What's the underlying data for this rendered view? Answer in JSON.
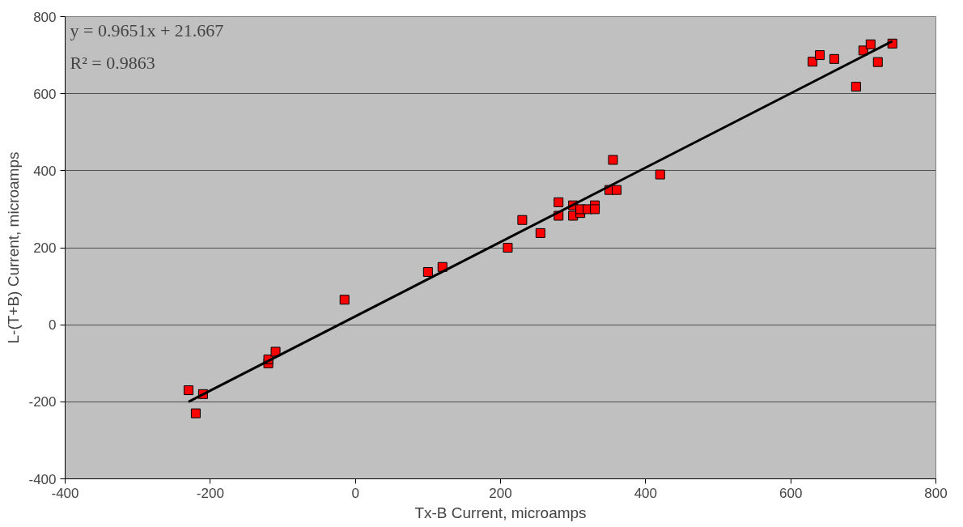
{
  "chart_data": {
    "type": "scatter",
    "xlabel": "Tx-B Current, microamps",
    "ylabel": "L-(T+B) Current, microamps",
    "xlim": [
      -400,
      800
    ],
    "xticks": [
      -400,
      -200,
      0,
      200,
      400,
      600,
      800
    ],
    "ylim": [
      -400,
      800
    ],
    "yticks": [
      -400,
      -200,
      0,
      200,
      400,
      600,
      800
    ],
    "grid": "y",
    "annotations": [
      "y = 0.9651x + 21.667",
      "R² = 0.9863"
    ],
    "series": [
      {
        "color": "#ff0000",
        "marker": "square",
        "x": [
          -230,
          -220,
          -210,
          -120,
          -120,
          -110,
          -15,
          100,
          120,
          210,
          230,
          255,
          280,
          280,
          300,
          300,
          310,
          310,
          320,
          330,
          330,
          350,
          355,
          360,
          420,
          630,
          640,
          660,
          690,
          700,
          710,
          720,
          740
        ],
        "values": [
          -170,
          -230,
          -180,
          -100,
          -90,
          -70,
          65,
          137,
          150,
          200,
          272,
          238,
          318,
          283,
          310,
          283,
          290,
          300,
          300,
          310,
          300,
          350,
          428,
          350,
          390,
          683,
          700,
          690,
          618,
          712,
          728,
          682,
          730
        ]
      },
      {
        "type": "line",
        "marker": "none",
        "color": "#000000",
        "x": [
          -230,
          740
        ],
        "values": [
          -200,
          736
        ]
      }
    ]
  }
}
